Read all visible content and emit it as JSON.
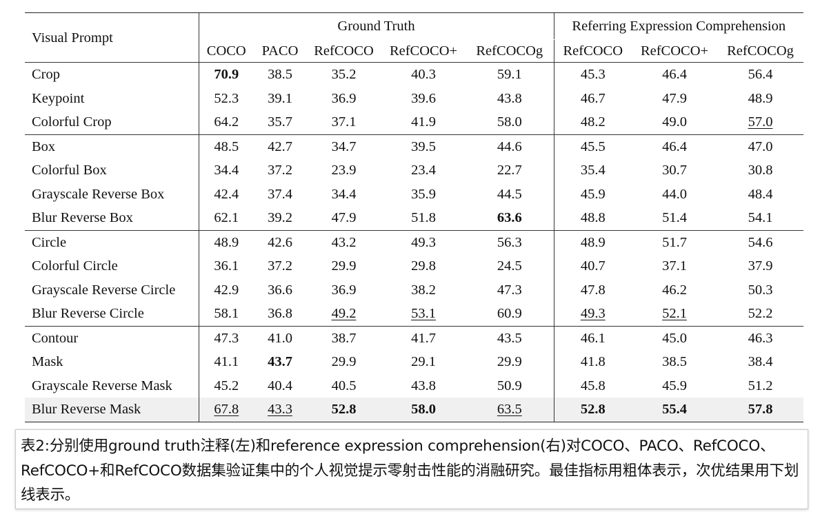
{
  "table": {
    "row_header_label": "Visual Prompt",
    "groups": [
      {
        "label": "Ground Truth",
        "columns": [
          "COCO",
          "PACO",
          "RefCOCO",
          "RefCOCO+",
          "RefCOCOg"
        ]
      },
      {
        "label": "Referring Expression Comprehension",
        "columns": [
          "RefCOCO",
          "RefCOCO+",
          "RefCOCOg"
        ]
      }
    ],
    "row_groups": [
      {
        "rows": [
          {
            "name": "Crop",
            "values": [
              "70.9",
              "38.5",
              "35.2",
              "40.3",
              "59.1",
              "45.3",
              "46.4",
              "56.4"
            ],
            "bold": [
              0
            ],
            "underline": []
          },
          {
            "name": "Keypoint",
            "values": [
              "52.3",
              "39.1",
              "36.9",
              "39.6",
              "43.8",
              "46.7",
              "47.9",
              "48.9"
            ],
            "bold": [],
            "underline": []
          },
          {
            "name": "Colorful Crop",
            "values": [
              "64.2",
              "35.7",
              "37.1",
              "41.9",
              "58.0",
              "48.2",
              "49.0",
              "57.0"
            ],
            "bold": [],
            "underline": [
              7
            ]
          }
        ]
      },
      {
        "rows": [
          {
            "name": "Box",
            "values": [
              "48.5",
              "42.7",
              "34.7",
              "39.5",
              "44.6",
              "45.5",
              "46.4",
              "47.0"
            ],
            "bold": [],
            "underline": []
          },
          {
            "name": "Colorful Box",
            "values": [
              "34.4",
              "37.2",
              "23.9",
              "23.4",
              "22.7",
              "35.4",
              "30.7",
              "30.8"
            ],
            "bold": [],
            "underline": []
          },
          {
            "name": "Grayscale Reverse Box",
            "values": [
              "42.4",
              "37.4",
              "34.4",
              "35.9",
              "44.5",
              "45.9",
              "44.0",
              "48.4"
            ],
            "bold": [],
            "underline": []
          },
          {
            "name": "Blur Reverse Box",
            "values": [
              "62.1",
              "39.2",
              "47.9",
              "51.8",
              "63.6",
              "48.8",
              "51.4",
              "54.1"
            ],
            "bold": [
              4
            ],
            "underline": []
          }
        ]
      },
      {
        "rows": [
          {
            "name": "Circle",
            "values": [
              "48.9",
              "42.6",
              "43.2",
              "49.3",
              "56.3",
              "48.9",
              "51.7",
              "54.6"
            ],
            "bold": [],
            "underline": []
          },
          {
            "name": "Colorful Circle",
            "values": [
              "36.1",
              "37.2",
              "29.9",
              "29.8",
              "24.5",
              "40.7",
              "37.1",
              "37.9"
            ],
            "bold": [],
            "underline": []
          },
          {
            "name": "Grayscale Reverse Circle",
            "values": [
              "42.9",
              "36.6",
              "36.9",
              "38.2",
              "47.3",
              "47.8",
              "46.2",
              "50.3"
            ],
            "bold": [],
            "underline": []
          },
          {
            "name": "Blur Reverse Circle",
            "values": [
              "58.1",
              "36.8",
              "49.2",
              "53.1",
              "60.9",
              "49.3",
              "52.1",
              "52.2"
            ],
            "bold": [],
            "underline": [
              2,
              3,
              5,
              6
            ]
          }
        ]
      },
      {
        "rows": [
          {
            "name": "Contour",
            "values": [
              "47.3",
              "41.0",
              "38.7",
              "41.7",
              "43.5",
              "46.1",
              "45.0",
              "46.3"
            ],
            "bold": [],
            "underline": []
          },
          {
            "name": "Mask",
            "values": [
              "41.1",
              "43.7",
              "29.9",
              "29.1",
              "29.9",
              "41.8",
              "38.5",
              "38.4"
            ],
            "bold": [
              1
            ],
            "underline": []
          },
          {
            "name": "Grayscale Reverse Mask",
            "values": [
              "45.2",
              "40.4",
              "40.5",
              "43.8",
              "50.9",
              "45.8",
              "45.9",
              "51.2"
            ],
            "bold": [],
            "underline": []
          },
          {
            "name": "Blur Reverse Mask",
            "values": [
              "67.8",
              "43.3",
              "52.8",
              "58.0",
              "63.5",
              "52.8",
              "55.4",
              "57.8"
            ],
            "bold": [
              2,
              3,
              5,
              6,
              7
            ],
            "underline": [
              0,
              1,
              4
            ],
            "shaded": true
          }
        ]
      }
    ]
  },
  "caption": "表2:分别使用ground truth注释(左)和reference expression comprehension(右)对COCO、PACO、RefCOCO、RefCOCO+和RefCOCO数据集验证集中的个人视觉提示零射击性能的消融研究。最佳指标用粗体表示，次优结果用下划线表示。",
  "colors": {
    "text": "#111111",
    "rule": "#333333",
    "shaded_row": "#f0f0f0",
    "caption_border": "#c8c8c8"
  }
}
